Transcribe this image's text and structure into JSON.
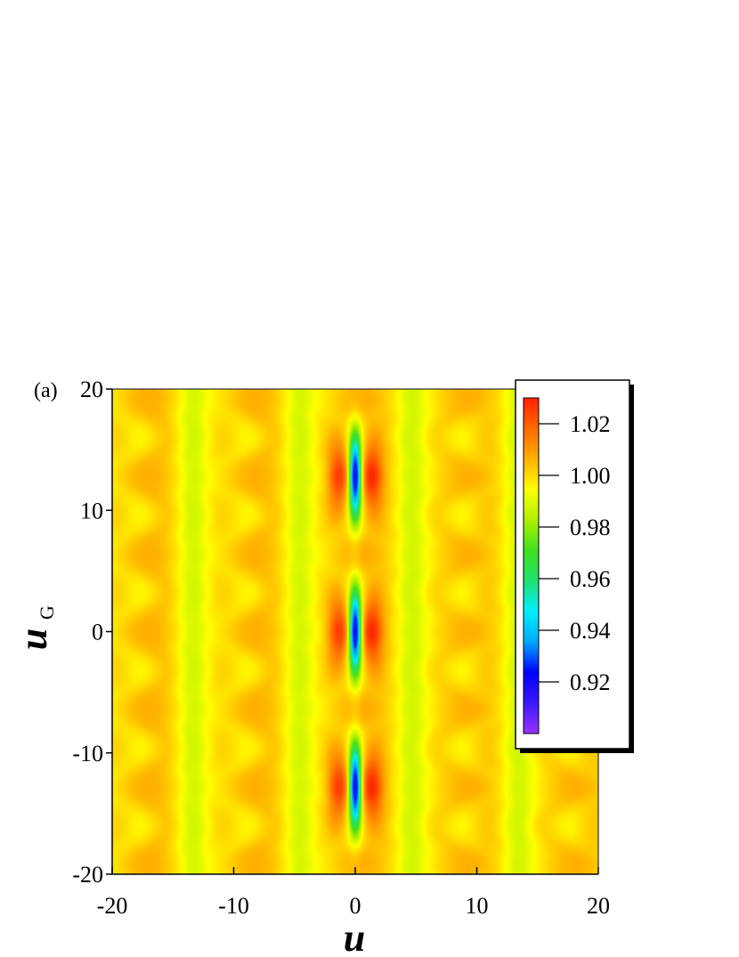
{
  "chart_data": {
    "type": "heatmap",
    "panel_label": "(a)",
    "xlabel": "u",
    "ylabel": "u",
    "ylabel_subscript": "G",
    "xlim": [
      -20,
      20
    ],
    "ylim": [
      -20,
      20
    ],
    "xticks": [
      {
        "value": -20,
        "label": "-20"
      },
      {
        "value": -10,
        "label": "-10"
      },
      {
        "value": 0,
        "label": "0"
      },
      {
        "value": 10,
        "label": "10"
      },
      {
        "value": 20,
        "label": "20"
      }
    ],
    "yticks": [
      {
        "value": 20,
        "label": "20"
      },
      {
        "value": 10,
        "label": "10"
      },
      {
        "value": 0,
        "label": "0"
      },
      {
        "value": -10,
        "label": "-10"
      },
      {
        "value": -20,
        "label": "-20"
      }
    ],
    "colorbar": {
      "range": [
        0.9,
        1.03
      ],
      "ticks": [
        {
          "value": 1.02,
          "label": "1.02"
        },
        {
          "value": 1.0,
          "label": "1.00"
        },
        {
          "value": 0.98,
          "label": "0.98"
        },
        {
          "value": 0.96,
          "label": "0.96"
        },
        {
          "value": 0.94,
          "label": "0.94"
        },
        {
          "value": 0.92,
          "label": "0.92"
        }
      ],
      "colors": [
        "#9a33ff",
        "#3a1aff",
        "#0000ff",
        "#00a8ff",
        "#00f0ff",
        "#20e070",
        "#40e020",
        "#b0f000",
        "#ffff00",
        "#ffb000",
        "#ff6a00",
        "#ff2200"
      ]
    },
    "features": {
      "central_minima": [
        {
          "x": 0,
          "y": 12.8,
          "value": 0.91
        },
        {
          "x": 0,
          "y": 0,
          "value": 0.91
        },
        {
          "x": 0,
          "y": -12.8,
          "value": 0.91
        }
      ],
      "central_maxima_value": 1.02,
      "background_value": 1.0
    },
    "grid": false,
    "legend": "colorbar, top-right (overlapping plot)"
  }
}
